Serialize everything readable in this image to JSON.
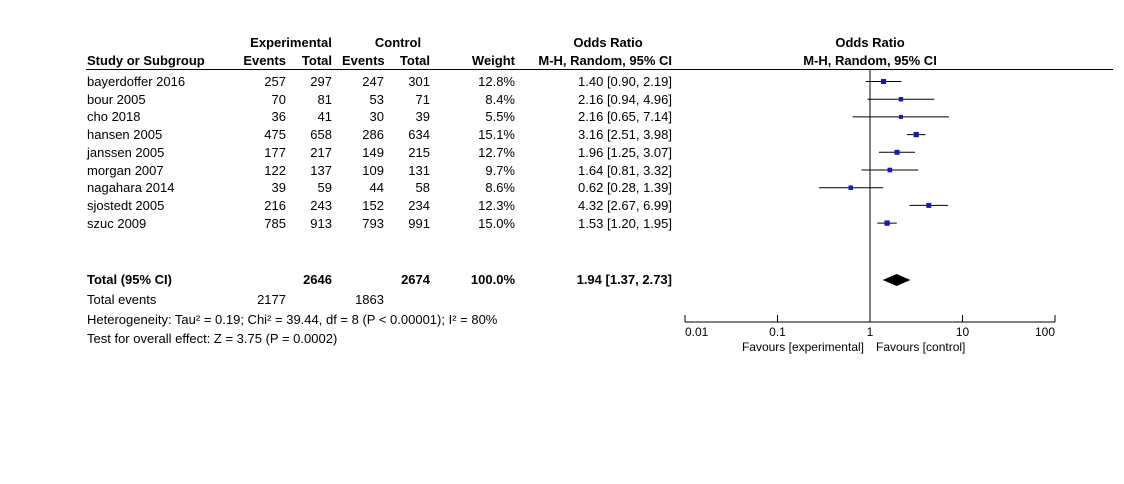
{
  "headers": {
    "group1": "Experimental",
    "group2": "Control",
    "col_study": "Study or Subgroup",
    "col_events1": "Events",
    "col_total1": "Total",
    "col_events2": "Events",
    "col_total2": "Total",
    "col_weight": "Weight",
    "or_top": "Odds Ratio",
    "or_sub": "M-H, Random, 95% CI",
    "plot_top": "Odds Ratio",
    "plot_sub": "M-H, Random, 95% CI"
  },
  "studies": [
    {
      "name": "bayerdoffer 2016",
      "e1": "257",
      "n1": "297",
      "e2": "247",
      "n2": "301",
      "weight": "12.8%",
      "ci_text": "1.40 [0.90, 2.19]"
    },
    {
      "name": "bour 2005",
      "e1": "70",
      "n1": "81",
      "e2": "53",
      "n2": "71",
      "weight": "8.4%",
      "ci_text": "2.16 [0.94, 4.96]"
    },
    {
      "name": "cho 2018",
      "e1": "36",
      "n1": "41",
      "e2": "30",
      "n2": "39",
      "weight": "5.5%",
      "ci_text": "2.16 [0.65, 7.14]"
    },
    {
      "name": "hansen 2005",
      "e1": "475",
      "n1": "658",
      "e2": "286",
      "n2": "634",
      "weight": "15.1%",
      "ci_text": "3.16 [2.51, 3.98]"
    },
    {
      "name": "janssen 2005",
      "e1": "177",
      "n1": "217",
      "e2": "149",
      "n2": "215",
      "weight": "12.7%",
      "ci_text": "1.96 [1.25, 3.07]"
    },
    {
      "name": "morgan 2007",
      "e1": "122",
      "n1": "137",
      "e2": "109",
      "n2": "131",
      "weight": "9.7%",
      "ci_text": "1.64 [0.81, 3.32]"
    },
    {
      "name": "nagahara 2014",
      "e1": "39",
      "n1": "59",
      "e2": "44",
      "n2": "58",
      "weight": "8.6%",
      "ci_text": "0.62 [0.28, 1.39]"
    },
    {
      "name": "sjostedt 2005",
      "e1": "216",
      "n1": "243",
      "e2": "152",
      "n2": "234",
      "weight": "12.3%",
      "ci_text": "4.32 [2.67, 6.99]"
    },
    {
      "name": "szuc 2009",
      "e1": "785",
      "n1": "913",
      "e2": "793",
      "n2": "991",
      "weight": "15.0%",
      "ci_text": "1.53 [1.20, 1.95]"
    }
  ],
  "total": {
    "label": "Total (95% CI)",
    "n1": "2646",
    "n2": "2674",
    "weight": "100.0%",
    "ci_text": "1.94 [1.37, 2.73]"
  },
  "events": {
    "label": "Total events",
    "e1": "2177",
    "e2": "1863"
  },
  "heterogeneity": "Heterogeneity: Tau² = 0.19; Chi² = 39.44, df = 8 (P < 0.00001); I² = 80%",
  "overall_effect": "Test for overall effect: Z = 3.75 (P = 0.0002)",
  "axis": {
    "ticks": [
      "0.01",
      "0.1",
      "1",
      "10",
      "100"
    ],
    "favours_left": "Favours [experimental]",
    "favours_right": "Favours [control]"
  },
  "colors": {
    "marker": "#1a1aa8",
    "line": "#000000",
    "diamond": "#000000"
  },
  "chart_data": {
    "type": "forest",
    "scale": "log",
    "xlim": [
      0.01,
      100
    ],
    "null_value": 1,
    "studies": [
      {
        "or": 1.4,
        "lo": 0.9,
        "hi": 2.19,
        "weight": 12.8
      },
      {
        "or": 2.16,
        "lo": 0.94,
        "hi": 4.96,
        "weight": 8.4
      },
      {
        "or": 2.16,
        "lo": 0.65,
        "hi": 7.14,
        "weight": 5.5
      },
      {
        "or": 3.16,
        "lo": 2.51,
        "hi": 3.98,
        "weight": 15.1
      },
      {
        "or": 1.96,
        "lo": 1.25,
        "hi": 3.07,
        "weight": 12.7
      },
      {
        "or": 1.64,
        "lo": 0.81,
        "hi": 3.32,
        "weight": 9.7
      },
      {
        "or": 0.62,
        "lo": 0.28,
        "hi": 1.39,
        "weight": 8.6
      },
      {
        "or": 4.32,
        "lo": 2.67,
        "hi": 6.99,
        "weight": 12.3
      },
      {
        "or": 1.53,
        "lo": 1.2,
        "hi": 1.95,
        "weight": 15.0
      }
    ],
    "pooled": {
      "or": 1.94,
      "lo": 1.37,
      "hi": 2.73
    }
  }
}
